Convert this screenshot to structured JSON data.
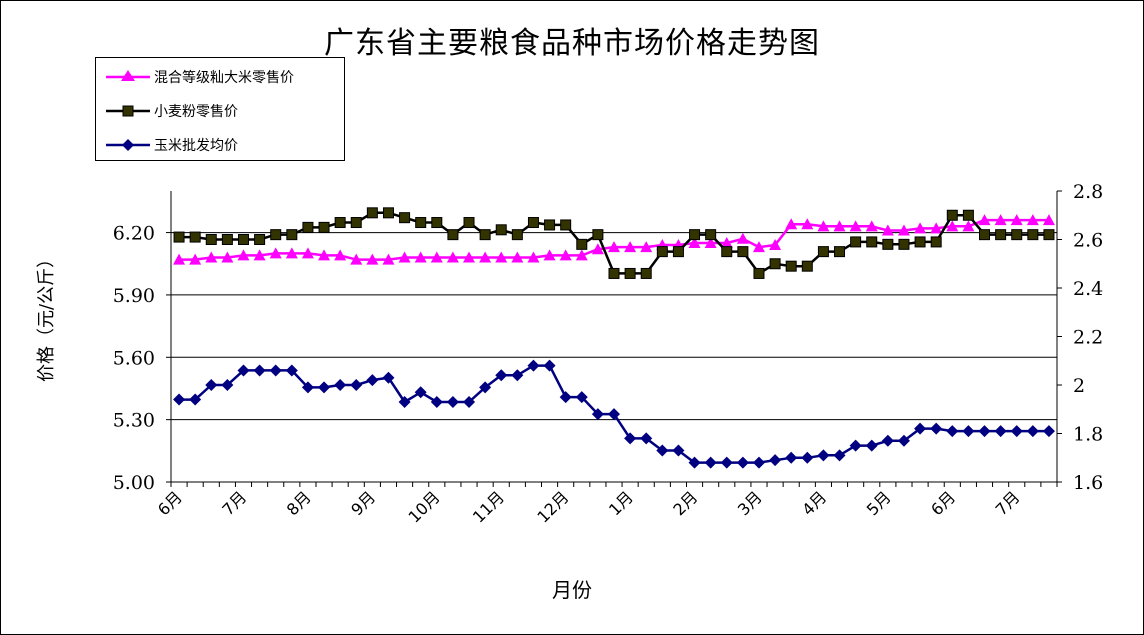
{
  "chart_data": {
    "type": "line",
    "title": "广东省主要粮食品种市场价格走势图",
    "xlabel": "月份",
    "ylabel": "价格（元/公斤）",
    "ylim": [
      5.0,
      6.4
    ],
    "y2lim": [
      1.6,
      2.8
    ],
    "yticks": [
      "5.00",
      "5.30",
      "5.60",
      "5.90",
      "6.20"
    ],
    "y2ticks": [
      "1.6",
      "1.8",
      "2",
      "2.2",
      "2.4",
      "2.6",
      "2.8"
    ],
    "month_labels": [
      "6月",
      "7月",
      "8月",
      "9月",
      "10月",
      "11月",
      "12月",
      "1月",
      "2月",
      "3月",
      "4月",
      "5月",
      "6月",
      "7月"
    ],
    "month_label_index": [
      0,
      4,
      8,
      12,
      16,
      20,
      24,
      28,
      32,
      36,
      40,
      44,
      48,
      52
    ],
    "point_count": 55,
    "grid": true,
    "legend_position": "top-left",
    "series": [
      {
        "name": "混合等级籼大米零售价",
        "axis": "left",
        "color": "#ff00ff",
        "marker": "triangle",
        "values": [
          6.07,
          6.07,
          6.08,
          6.08,
          6.09,
          6.09,
          6.1,
          6.1,
          6.1,
          6.09,
          6.09,
          6.07,
          6.07,
          6.07,
          6.08,
          6.08,
          6.08,
          6.08,
          6.08,
          6.08,
          6.08,
          6.08,
          6.08,
          6.09,
          6.09,
          6.09,
          6.12,
          6.13,
          6.13,
          6.13,
          6.14,
          6.14,
          6.15,
          6.15,
          6.15,
          6.17,
          6.13,
          6.14,
          6.24,
          6.24,
          6.23,
          6.23,
          6.23,
          6.23,
          6.21,
          6.21,
          6.22,
          6.22,
          6.23,
          6.23,
          6.26,
          6.26,
          6.26,
          6.26,
          6.26
        ]
      },
      {
        "name": "小麦粉零售价",
        "axis": "right",
        "color": "#000000",
        "marker": "square",
        "values": [
          2.61,
          2.61,
          2.6,
          2.6,
          2.6,
          2.6,
          2.62,
          2.62,
          2.65,
          2.65,
          2.67,
          2.67,
          2.71,
          2.71,
          2.69,
          2.67,
          2.67,
          2.62,
          2.67,
          2.62,
          2.64,
          2.62,
          2.67,
          2.66,
          2.66,
          2.58,
          2.62,
          2.46,
          2.46,
          2.46,
          2.55,
          2.55,
          2.62,
          2.62,
          2.55,
          2.55,
          2.46,
          2.5,
          2.49,
          2.49,
          2.55,
          2.55,
          2.59,
          2.59,
          2.58,
          2.58,
          2.59,
          2.59,
          2.7,
          2.7,
          2.62,
          2.62,
          2.62,
          2.62,
          2.62
        ]
      },
      {
        "name": "玉米批发均价",
        "axis": "right",
        "color": "#000080",
        "marker": "diamond",
        "values": [
          1.94,
          1.94,
          2.0,
          2.0,
          2.06,
          2.06,
          2.06,
          2.06,
          1.99,
          1.99,
          2.0,
          2.0,
          2.02,
          2.03,
          1.93,
          1.97,
          1.93,
          1.93,
          1.93,
          1.99,
          2.04,
          2.04,
          2.08,
          2.08,
          1.95,
          1.95,
          1.88,
          1.88,
          1.78,
          1.78,
          1.73,
          1.73,
          1.68,
          1.68,
          1.68,
          1.68,
          1.68,
          1.69,
          1.7,
          1.7,
          1.71,
          1.71,
          1.75,
          1.75,
          1.77,
          1.77,
          1.82,
          1.82,
          1.81,
          1.81,
          1.81,
          1.81,
          1.81,
          1.81,
          1.81
        ]
      }
    ]
  },
  "legend": {
    "items": [
      "混合等级籼大米零售价",
      "小麦粉零售价",
      "玉米批发均价"
    ]
  }
}
